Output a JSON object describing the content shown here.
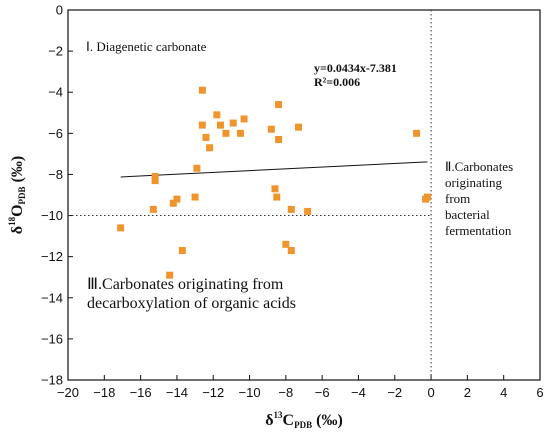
{
  "chart_data": {
    "type": "scatter",
    "xlim": [
      -20,
      6
    ],
    "ylim": [
      -18,
      0
    ],
    "x_ticks": [
      -20,
      -18,
      -16,
      -14,
      -12,
      -10,
      -8,
      -6,
      -4,
      -2,
      0,
      2,
      4,
      6
    ],
    "y_ticks": [
      0,
      -2,
      -4,
      -6,
      -8,
      -10,
      -12,
      -14,
      -16,
      -18
    ],
    "xlabel": {
      "main": "δ",
      "sup": "13",
      "symbol": "C",
      "sub": "PDB",
      "unit": " (‰)"
    },
    "ylabel": {
      "main": "δ",
      "sup": "18",
      "symbol": "O",
      "sub": "PDB",
      "unit": " (‰)"
    },
    "marker_color": "#f0952d",
    "points": [
      {
        "x": -17.1,
        "y": -10.6
      },
      {
        "x": -15.3,
        "y": -9.7
      },
      {
        "x": -15.2,
        "y": -8.1
      },
      {
        "x": -15.2,
        "y": -8.3
      },
      {
        "x": -14.4,
        "y": -12.9
      },
      {
        "x": -14.2,
        "y": -9.4
      },
      {
        "x": -14.0,
        "y": -9.2
      },
      {
        "x": -13.7,
        "y": -11.7
      },
      {
        "x": -13.0,
        "y": -9.1
      },
      {
        "x": -12.9,
        "y": -7.7
      },
      {
        "x": -12.6,
        "y": -3.9
      },
      {
        "x": -12.6,
        "y": -5.6
      },
      {
        "x": -12.4,
        "y": -6.2
      },
      {
        "x": -12.2,
        "y": -6.7
      },
      {
        "x": -11.8,
        "y": -5.1
      },
      {
        "x": -11.6,
        "y": -5.6
      },
      {
        "x": -11.3,
        "y": -6.0
      },
      {
        "x": -10.9,
        "y": -5.5
      },
      {
        "x": -10.5,
        "y": -6.0
      },
      {
        "x": -10.3,
        "y": -5.3
      },
      {
        "x": -8.8,
        "y": -5.8
      },
      {
        "x": -8.6,
        "y": -8.7
      },
      {
        "x": -8.5,
        "y": -9.1
      },
      {
        "x": -8.4,
        "y": -4.6
      },
      {
        "x": -8.4,
        "y": -6.3
      },
      {
        "x": -8.0,
        "y": -11.4
      },
      {
        "x": -7.7,
        "y": -9.7
      },
      {
        "x": -7.7,
        "y": -11.7
      },
      {
        "x": -7.3,
        "y": -5.7
      },
      {
        "x": -6.8,
        "y": -9.8
      },
      {
        "x": -0.8,
        "y": -6.0
      },
      {
        "x": -0.3,
        "y": -9.2
      },
      {
        "x": -0.2,
        "y": -9.1
      }
    ],
    "trendline": {
      "slope": 0.0434,
      "intercept": -7.381,
      "x_range": [
        -17.1,
        -0.2
      ]
    },
    "reference_lines": {
      "vertical_x": 0,
      "horizontal_y": -10
    },
    "equation_lines": [
      "y=0.0434x-7.381",
      "R²=0.006"
    ],
    "annotations": {
      "region_1": [
        "Ⅰ. Diagenetic carbonate"
      ],
      "region_2": [
        "Ⅱ.Carbonates",
        "originating",
        "from",
        "bacterial",
        "fermentation"
      ],
      "region_3": [
        "Ⅲ.Carbonates  originating  from",
        "decarboxylation of organic acids"
      ]
    }
  }
}
